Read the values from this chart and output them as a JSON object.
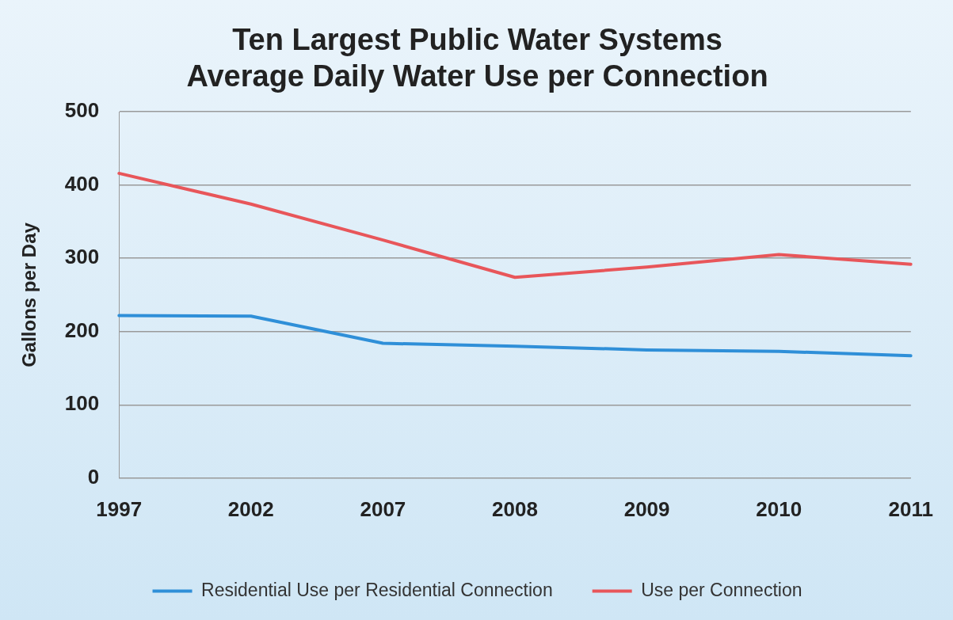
{
  "chart_data": {
    "type": "line",
    "title": "Ten Largest Public Water Systems\nAverage Daily Water Use per Connection",
    "ylabel": "Gallons per Day",
    "categories": [
      "1997",
      "2002",
      "2007",
      "2008",
      "2009",
      "2010",
      "2011"
    ],
    "series": [
      {
        "name": "Residential Use per Residential Connection",
        "color": "#2f8fd8",
        "values": [
          222,
          221,
          184,
          180,
          175,
          173,
          167
        ]
      },
      {
        "name": "Use per Connection",
        "color": "#e8565a",
        "values": [
          416,
          374,
          325,
          274,
          288,
          305,
          292
        ]
      }
    ],
    "ylim": [
      0,
      500
    ],
    "yticks": [
      0,
      100,
      200,
      300,
      400,
      500
    ],
    "grid": "y",
    "legend": "bottom",
    "marker": "none",
    "line_style": "solid"
  }
}
